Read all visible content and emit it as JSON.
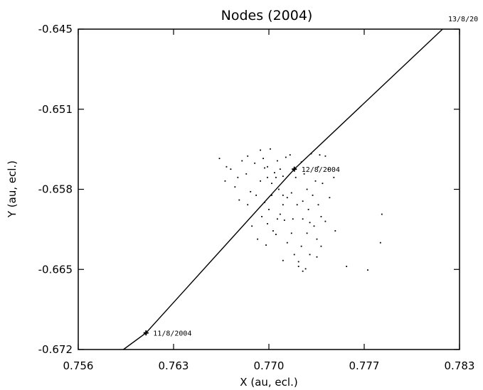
{
  "chart_data": {
    "type": "scatter",
    "title": "Nodes (2004)",
    "xlabel": "X (au, ecl.)",
    "ylabel": "Y (au, ecl.)",
    "xlim": [
      0.756,
      0.783
    ],
    "ylim": [
      -0.672,
      -0.645
    ],
    "xticks": [
      "0.756",
      "0.763",
      "0.770",
      "0.777",
      "0.783"
    ],
    "yticks": [
      "-0.645",
      "-0.651",
      "-0.658",
      "-0.665",
      "-0.672"
    ],
    "grid": false,
    "line": {
      "points": [
        {
          "x": 0.7592,
          "y": -0.672
        },
        {
          "x": 0.7608,
          "y": -0.6706
        },
        {
          "x": 0.7713,
          "y": -0.6568
        },
        {
          "x": 0.7818,
          "y": -0.645
        }
      ],
      "markers": [
        {
          "x": 0.7608,
          "y": -0.6706,
          "label": "11/8/2004"
        },
        {
          "x": 0.7713,
          "y": -0.6568,
          "label": "12/8/2004"
        }
      ],
      "offchart_label": "13/8/20"
    },
    "scatter": {
      "points": [
        [
          0.7668,
          -0.6568
        ],
        [
          0.7673,
          -0.6575
        ],
        [
          0.7671,
          -0.6583
        ],
        [
          0.7676,
          -0.6561
        ],
        [
          0.768,
          -0.6557
        ],
        [
          0.7682,
          -0.6587
        ],
        [
          0.7685,
          -0.6563
        ],
        [
          0.7689,
          -0.6552
        ],
        [
          0.7691,
          -0.6559
        ],
        [
          0.7694,
          -0.6566
        ],
        [
          0.7696,
          -0.6551
        ],
        [
          0.7694,
          -0.6575
        ],
        [
          0.7689,
          -0.6578
        ],
        [
          0.7686,
          -0.659
        ],
        [
          0.7692,
          -0.6596
        ],
        [
          0.7695,
          -0.6602
        ],
        [
          0.7697,
          -0.658
        ],
        [
          0.7699,
          -0.6571
        ],
        [
          0.7701,
          -0.6561
        ],
        [
          0.7703,
          -0.6568
        ],
        [
          0.77,
          -0.6575
        ],
        [
          0.7702,
          -0.6585
        ],
        [
          0.7705,
          -0.6574
        ],
        [
          0.7707,
          -0.6558
        ],
        [
          0.7708,
          -0.6592
        ],
        [
          0.7705,
          -0.6598
        ],
        [
          0.7703,
          -0.6606
        ],
        [
          0.7698,
          -0.662
        ],
        [
          0.7694,
          -0.6614
        ],
        [
          0.769,
          -0.6608
        ],
        [
          0.7687,
          -0.6627
        ],
        [
          0.7693,
          -0.6632
        ],
        [
          0.77,
          -0.6623
        ],
        [
          0.7708,
          -0.663
        ],
        [
          0.7712,
          -0.661
        ],
        [
          0.7715,
          -0.6598
        ],
        [
          0.7711,
          -0.6588
        ],
        [
          0.7714,
          -0.6575
        ],
        [
          0.7718,
          -0.6562
        ],
        [
          0.772,
          -0.6572
        ],
        [
          0.7722,
          -0.6585
        ],
        [
          0.7719,
          -0.6595
        ],
        [
          0.7723,
          -0.6602
        ],
        [
          0.7726,
          -0.659
        ],
        [
          0.7728,
          -0.6578
        ],
        [
          0.773,
          -0.6566
        ],
        [
          0.7731,
          -0.6556
        ],
        [
          0.7725,
          -0.6555
        ],
        [
          0.7735,
          -0.6557
        ],
        [
          0.7737,
          -0.6568
        ],
        [
          0.7733,
          -0.658
        ],
        [
          0.773,
          -0.6598
        ],
        [
          0.7732,
          -0.6608
        ],
        [
          0.7727,
          -0.6616
        ],
        [
          0.7722,
          -0.6622
        ],
        [
          0.7718,
          -0.6633
        ],
        [
          0.7716,
          -0.6646
        ],
        [
          0.7724,
          -0.664
        ],
        [
          0.7729,
          -0.6627
        ],
        [
          0.7735,
          -0.6612
        ],
        [
          0.7742,
          -0.662
        ],
        [
          0.7738,
          -0.6592
        ],
        [
          0.7741,
          -0.6575
        ],
        [
          0.7716,
          -0.665
        ],
        [
          0.7713,
          -0.664
        ],
        [
          0.7705,
          -0.6645
        ],
        [
          0.775,
          -0.665
        ],
        [
          0.7765,
          -0.6653
        ],
        [
          0.7775,
          -0.6606
        ],
        [
          0.7774,
          -0.663
        ],
        [
          0.771,
          -0.6556
        ],
        [
          0.768,
          -0.6598
        ],
        [
          0.7683,
          -0.6616
        ],
        [
          0.7664,
          -0.6578
        ],
        [
          0.766,
          -0.6559
        ],
        [
          0.7665,
          -0.6566
        ],
        [
          0.7711,
          -0.6622
        ],
        [
          0.7701,
          -0.661
        ],
        [
          0.7706,
          -0.6611
        ],
        [
          0.7719,
          -0.661
        ],
        [
          0.7724,
          -0.6613
        ],
        [
          0.7732,
          -0.6633
        ],
        [
          0.7729,
          -0.6642
        ],
        [
          0.7721,
          -0.6652
        ],
        [
          0.7719,
          -0.6654
        ],
        [
          0.7697,
          -0.659
        ],
        [
          0.7679,
          -0.6572
        ],
        [
          0.7674,
          -0.6594
        ],
        [
          0.7692,
          -0.6567
        ],
        [
          0.7705,
          -0.659
        ]
      ]
    }
  }
}
